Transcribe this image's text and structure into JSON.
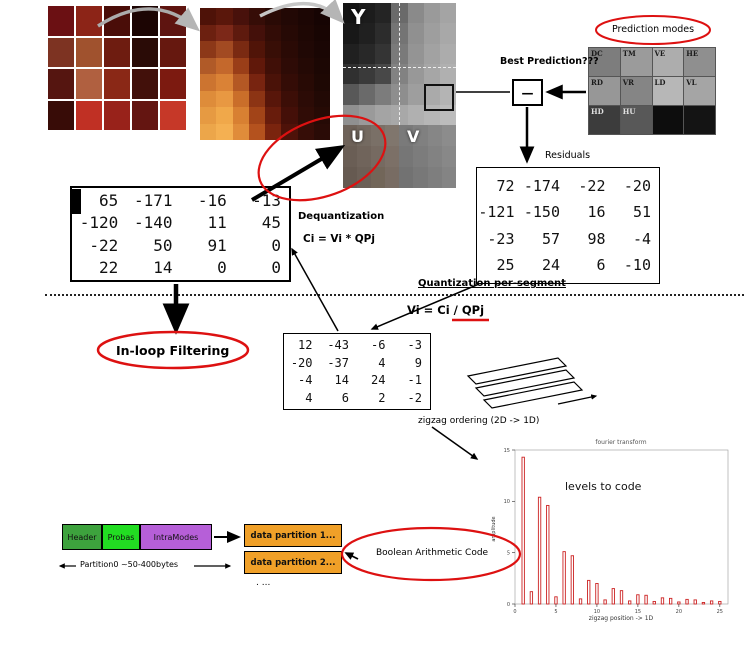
{
  "labels": {
    "y": "Y",
    "u": "U",
    "v": "V",
    "prediction_modes": "Prediction modes",
    "best_prediction": "Best Prediction???",
    "minus": "—",
    "residuals": "Residuals",
    "dequantization": "Dequantization",
    "dequant_formula": "Ci = Vi * QPj",
    "quant_per_segment": "Quantization per-segment",
    "quant_formula": "Vi = Ci / QPj",
    "inloop_filtering": "In-loop Filtering",
    "zigzag_ordering": "zigzag ordering  (2D -> 1D)",
    "boolean_arithmetic_coder": "Boolean Arithmetic Coder",
    "partition0": "Partition0  ~50-400bytes",
    "more_partitions": ". ..."
  },
  "stream": {
    "header": "Header",
    "probas": "Probas",
    "intra_modes": "IntraModes",
    "data_partition_1": "data partition 1...",
    "data_partition_2": "data partition 2..."
  },
  "prediction_grid": {
    "cells": [
      {
        "label": "DC",
        "bg": "#7d7d7d",
        "fg": "#1a1a1a"
      },
      {
        "label": "TM",
        "bg": "#9b9b9b",
        "fg": "#1a1a1a"
      },
      {
        "label": "VE",
        "bg": "#adadad",
        "fg": "#1a1a1a"
      },
      {
        "label": "HE",
        "bg": "#8f8f8f",
        "fg": "#1a1a1a"
      },
      {
        "label": "RD",
        "bg": "#979797",
        "fg": "#1a1a1a"
      },
      {
        "label": "VR",
        "bg": "#858585",
        "fg": "#1a1a1a"
      },
      {
        "label": "LD",
        "bg": "#b7b7b7",
        "fg": "#1a1a1a"
      },
      {
        "label": "VL",
        "bg": "#a5a5a5",
        "fg": "#1a1a1a"
      },
      {
        "label": "HD",
        "bg": "#3c3c3c",
        "fg": "#e0e0e0"
      },
      {
        "label": "HU",
        "bg": "#585858",
        "fg": "#e0e0e0"
      },
      {
        "label": "",
        "bg": "#0d0d0d",
        "fg": "#e0e0e0"
      },
      {
        "label": "",
        "bg": "#141414",
        "fg": "#e0e0e0"
      }
    ]
  },
  "matrices": {
    "dequantized": {
      "rows": [
        [
          "65",
          "-171",
          "-16",
          "-13"
        ],
        [
          "-120",
          "-140",
          "11",
          "45"
        ],
        [
          "-22",
          "50",
          "91",
          "0"
        ],
        [
          "22",
          "14",
          "0",
          "0"
        ]
      ]
    },
    "residuals": {
      "rows": [
        [
          "72",
          "-174",
          "-22",
          "-20"
        ],
        [
          "-121",
          "-150",
          "16",
          "51"
        ],
        [
          "-23",
          "57",
          "98",
          "-4"
        ],
        [
          "25",
          "24",
          "6",
          "-10"
        ]
      ]
    },
    "quantized": {
      "rows": [
        [
          "12",
          "-43",
          "-6",
          "-3"
        ],
        [
          "-20",
          "-37",
          "4",
          "9"
        ],
        [
          "-4",
          "14",
          "24",
          "-1"
        ],
        [
          "4",
          "6",
          "2",
          "-2"
        ]
      ]
    }
  },
  "images": {
    "photo": {
      "cols": 5,
      "gap": 2,
      "cells": [
        "#6b1013",
        "#8c2417",
        "#4a0d08",
        "#1c0503",
        "#5e1410",
        "#7d3322",
        "#a0522e",
        "#6e1c10",
        "#2a0b06",
        "#66180f",
        "#551510",
        "#b06040",
        "#8a2816",
        "#42100a",
        "#7c1a10",
        "#380c07",
        "#c03024",
        "#98221a",
        "#641511",
        "#c63828"
      ]
    },
    "block": {
      "cols": 8,
      "gap": 0,
      "cells": [
        "#4e1208",
        "#5a170b",
        "#48110b",
        "#360d07",
        "#2a0a05",
        "#220805",
        "#1c0604",
        "#160403",
        "#6c2010",
        "#7c2818",
        "#5e1a0e",
        "#44100a",
        "#320c06",
        "#260905",
        "#1e0704",
        "#180503",
        "#8c3818",
        "#a24a22",
        "#7a2a12",
        "#501408",
        "#380e06",
        "#2a0a05",
        "#200805",
        "#1a0604",
        "#b05a28",
        "#c4682c",
        "#9a3e18",
        "#60180a",
        "#400f07",
        "#2e0b06",
        "#240905",
        "#1c0704",
        "#cc7430",
        "#da8236",
        "#b45824",
        "#782410",
        "#4a1208",
        "#340c06",
        "#280a05",
        "#1e0804",
        "#de8c3a",
        "#e89842",
        "#ca6e2a",
        "#8c3414",
        "#58160a",
        "#3c0e07",
        "#2c0b06",
        "#220905",
        "#e69a42",
        "#f0a84a",
        "#d88032",
        "#a24418",
        "#681c0c",
        "#440f08",
        "#300c06",
        "#260a05",
        "#eca64a",
        "#f4b052",
        "#e08c3a",
        "#b4521e",
        "#7a240e",
        "#4e1209",
        "#360d07",
        "#2a0b06"
      ]
    },
    "y": {
      "cols": 7,
      "gap": 0,
      "cells": [
        "#141414",
        "#1c1c1c",
        "#242424",
        "#6a6a6a",
        "#8a8a8a",
        "#9a9a9a",
        "#a4a4a4",
        "#181818",
        "#202020",
        "#2c2c2c",
        "#747474",
        "#909090",
        "#9e9e9e",
        "#a8a8a8",
        "#202020",
        "#282828",
        "#343434",
        "#7a7a7a",
        "#949494",
        "#a2a2a2",
        "#acacac",
        "#303030",
        "#3a3a3a",
        "#484848",
        "#828282",
        "#989898",
        "#a6a6a6",
        "#b0b0b0",
        "#585858",
        "#6a6a6a",
        "#7c7c7c",
        "#8e8e8e",
        "#9e9e9e",
        "#aaaaaa",
        "#b4b4b4",
        "#909090",
        "#9a9a9a",
        "#a4a4a4",
        "#a8a8a8",
        "#b0b0b0",
        "#b6b6b6",
        "#bcbcbc"
      ]
    },
    "u": {
      "cols": 4,
      "gap": 0,
      "cells": [
        "#6e6259",
        "#746a61",
        "#7a7067",
        "#80766d",
        "#6a5e55",
        "#70645b",
        "#766a61",
        "#7c7067",
        "#665a51",
        "#6c6057",
        "#726659",
        "#786c63"
      ]
    },
    "v": {
      "cols": 4,
      "gap": 0,
      "cells": [
        "#7a7a7a",
        "#808080",
        "#868686",
        "#8c8c8c",
        "#767676",
        "#7c7c7c",
        "#828282",
        "#888888",
        "#727272",
        "#787878",
        "#7e7e7e",
        "#848484"
      ]
    }
  },
  "chart_data": {
    "type": "bar",
    "title": "fourier transform",
    "inner_label": "levels to code",
    "xlabel": "zigzag position   ->  1D",
    "ylabel": "amplitude",
    "color": "#cc2222",
    "xlim": [
      0,
      26
    ],
    "ylim": [
      0,
      15
    ],
    "xticks": [
      0,
      5,
      10,
      15,
      20,
      25
    ],
    "yticks": [
      0,
      5,
      10,
      15
    ],
    "x": [
      1,
      2,
      3,
      4,
      5,
      6,
      7,
      8,
      9,
      10,
      11,
      12,
      13,
      14,
      15,
      16,
      17,
      18,
      19,
      20,
      21,
      22,
      23,
      24,
      25
    ],
    "values": [
      14.3,
      1.2,
      10.4,
      9.6,
      0.7,
      5.1,
      4.7,
      0.5,
      2.3,
      2.0,
      0.4,
      1.5,
      1.3,
      0.3,
      0.9,
      0.85,
      0.25,
      0.6,
      0.55,
      0.2,
      0.45,
      0.4,
      0.15,
      0.3,
      0.25
    ]
  },
  "colors": {
    "accent_red": "#dd1111",
    "partition_orange": "#f0a028",
    "header_green": "#3da23d",
    "probas_green": "#22dd22",
    "intramodes_purple": "#b65fd8"
  }
}
